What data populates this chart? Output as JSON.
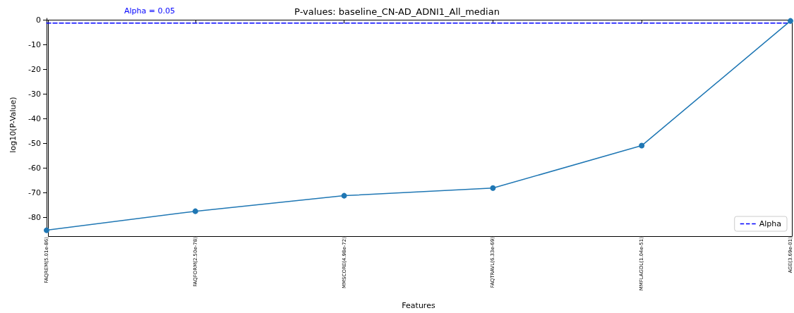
{
  "chart_data": {
    "type": "line",
    "title": "P-values: baseline_CN-AD_ADNI1_All_median",
    "xlabel": "Features",
    "ylabel": "log10(P-Value)",
    "categories": [
      "FAQREM(5.01e-86)",
      "FAQFORM(2.50e-78)",
      "MMSCORE(4.98e-72)",
      "FAQTRAVL(6.33e-69)",
      "MMFLAGDL(1.04e-51)",
      "AGE(3.69e-01)"
    ],
    "series": [
      {
        "color": "#1f77b4",
        "marker": "circle",
        "line_style": "solid",
        "values": [
          -85.3,
          -77.6,
          -71.3,
          -68.2,
          -51.0,
          -0.43
        ]
      },
      {
        "name": "Alpha",
        "color": "#0000ff",
        "marker": "none",
        "line_style": "dashed",
        "values": [
          -1.3,
          -1.3,
          -1.3,
          -1.3,
          -1.3,
          -1.3
        ]
      }
    ],
    "annotations": [
      "Alpha = 0.05"
    ],
    "ylim": [
      -85.7,
      0.6
    ],
    "yticks": [
      0,
      -10,
      -20,
      -30,
      -40,
      -50,
      -60,
      -70,
      -80
    ],
    "grid": false,
    "legend": "bottom right"
  }
}
